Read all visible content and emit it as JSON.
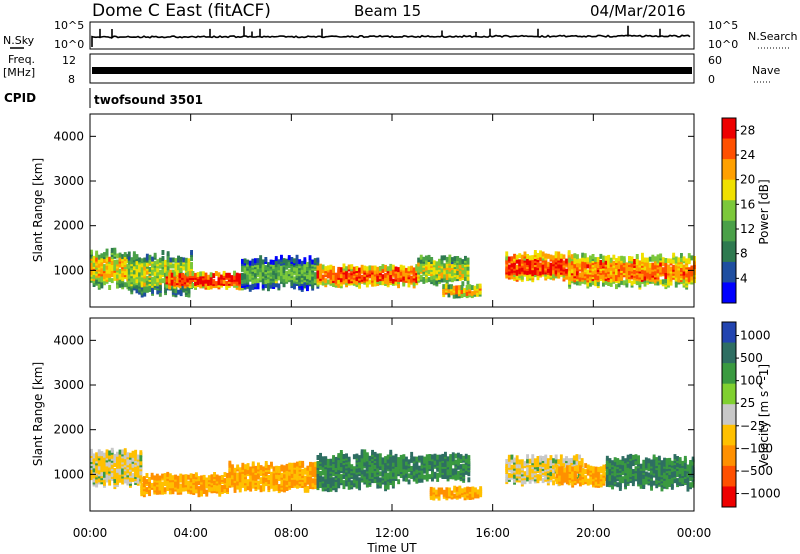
{
  "header": {
    "station": "Dome C East (fitACF)",
    "beam": "Beam 15",
    "date": "04/Mar/2016"
  },
  "panels": {
    "nsky": {
      "left_label": "N.Sky",
      "right_label": "N.Search",
      "left_ticks": [
        "10^5",
        "10^0"
      ],
      "right_ticks": [
        "10^5",
        "10^0"
      ]
    },
    "freq": {
      "left_label_1": "Freq.",
      "left_label_2": "[MHz]",
      "right_label": "Nave",
      "left_ticks": [
        "12",
        "8"
      ],
      "right_ticks": [
        "60",
        "0"
      ]
    },
    "cpid": {
      "label": "CPID",
      "program": "twofsound 3501"
    }
  },
  "colors": {
    "power_scale": [
      "#0000ff",
      "#1e4ea0",
      "#2e7a50",
      "#4aa048",
      "#7cc83a",
      "#f0e000",
      "#ffa000",
      "#ff5000",
      "#ee0000"
    ],
    "velocity_scale": [
      "#ee0000",
      "#ff5000",
      "#ff9000",
      "#ffc000",
      "#c8c8c8",
      "#80d030",
      "#3a9a40",
      "#2e6e62",
      "#2244b0"
    ]
  },
  "chart_data": [
    {
      "type": "heatmap",
      "title": "",
      "xlabel": "Time UT",
      "ylabel": "Slant Range [km]",
      "xlim": [
        "00:00",
        "24:00"
      ],
      "ylim": [
        180,
        4500
      ],
      "x_ticks": [
        "00:00",
        "04:00",
        "08:00",
        "12:00",
        "16:00",
        "20:00",
        "00:00"
      ],
      "y_ticks": [
        1000,
        2000,
        3000,
        4000
      ],
      "colorbar": {
        "label": "Power [dB]",
        "ticks": [
          4,
          8,
          12,
          16,
          20,
          24,
          28
        ],
        "range": [
          0,
          30
        ]
      },
      "bands": [
        {
          "t_start": 0.0,
          "t_end": 1.5,
          "range_center": 1100,
          "range_width": 700,
          "value": 20
        },
        {
          "t_start": 1.5,
          "t_end": 4.0,
          "range_center": 1000,
          "range_width": 800,
          "value": 16
        },
        {
          "t_start": 3.0,
          "t_end": 6.0,
          "range_center": 850,
          "range_width": 300,
          "value": 28
        },
        {
          "t_start": 6.0,
          "t_end": 9.0,
          "range_center": 1000,
          "range_width": 600,
          "value": 12
        },
        {
          "t_start": 9.0,
          "t_end": 13.0,
          "range_center": 950,
          "range_width": 400,
          "value": 26
        },
        {
          "t_start": 13.0,
          "t_end": 15.0,
          "range_center": 1050,
          "range_width": 500,
          "value": 18
        },
        {
          "t_start": 14.0,
          "t_end": 15.5,
          "range_center": 600,
          "range_width": 200,
          "value": 22
        },
        {
          "t_start": 16.5,
          "t_end": 19.0,
          "range_center": 1150,
          "range_width": 500,
          "value": 28
        },
        {
          "t_start": 19.0,
          "t_end": 24.0,
          "range_center": 1050,
          "range_width": 600,
          "value": 24
        }
      ]
    },
    {
      "type": "heatmap",
      "title": "",
      "xlabel": "Time UT",
      "ylabel": "Slant Range [km]",
      "xlim": [
        "00:00",
        "24:00"
      ],
      "ylim": [
        180,
        4500
      ],
      "x_ticks": [
        "00:00",
        "04:00",
        "08:00",
        "12:00",
        "16:00",
        "20:00",
        "00:00"
      ],
      "y_ticks": [
        1000,
        2000,
        3000,
        4000
      ],
      "colorbar": {
        "label": "Velocity [m s^-1]",
        "ticks": [
          "1000",
          "500",
          "100",
          "25",
          "-25",
          "-100",
          "-500",
          "-1000"
        ],
        "range": [
          -1000,
          1000
        ]
      },
      "bands": [
        {
          "t_start": 0.0,
          "t_end": 2.0,
          "range_center": 1200,
          "range_width": 700,
          "value": -25
        },
        {
          "t_start": 2.0,
          "t_end": 5.5,
          "range_center": 850,
          "range_width": 400,
          "value": -100
        },
        {
          "t_start": 5.5,
          "t_end": 9.0,
          "range_center": 1000,
          "range_width": 500,
          "value": -100
        },
        {
          "t_start": 9.0,
          "t_end": 12.0,
          "range_center": 1150,
          "range_width": 700,
          "value": 100
        },
        {
          "t_start": 12.0,
          "t_end": 15.0,
          "range_center": 1200,
          "range_width": 500,
          "value": 100
        },
        {
          "t_start": 13.5,
          "t_end": 15.5,
          "range_center": 650,
          "range_width": 200,
          "value": -100
        },
        {
          "t_start": 16.5,
          "t_end": 19.5,
          "range_center": 1150,
          "range_width": 500,
          "value": -25
        },
        {
          "t_start": 18.5,
          "t_end": 20.5,
          "range_center": 1050,
          "range_width": 400,
          "value": -100
        },
        {
          "t_start": 20.5,
          "t_end": 24.0,
          "range_center": 1100,
          "range_width": 600,
          "value": 100
        }
      ]
    }
  ]
}
